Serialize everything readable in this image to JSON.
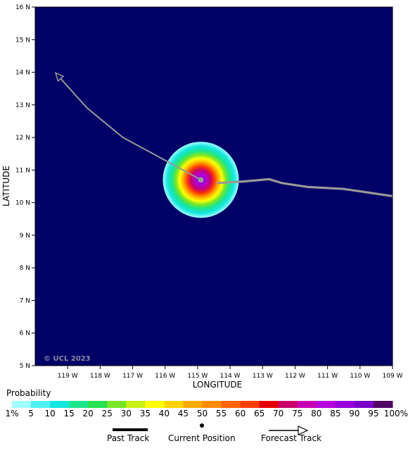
{
  "axes": {
    "xlabel": "LONGITUDE",
    "ylabel": "LATITUDE",
    "x_ticks": [
      "119 W",
      "118 W",
      "117 W",
      "116 W",
      "115 W",
      "114 W",
      "113 W",
      "112 W",
      "111 W",
      "110 W",
      "109 W"
    ],
    "y_ticks": [
      "16 N",
      "15 N",
      "14 N",
      "13 N",
      "12 N",
      "11 N",
      "10 N",
      "9 N",
      "8 N",
      "7 N",
      "6 N",
      "5 N"
    ],
    "x_range_deg_w": [
      120,
      109
    ],
    "y_range_deg_n": [
      5,
      16
    ]
  },
  "copyright": "© UCL 2023",
  "map": {
    "background": "#000066",
    "past_track": [
      [
        -109,
        10.2
      ],
      [
        -110.5,
        10.42
      ],
      [
        -111.6,
        10.48
      ],
      [
        -112.4,
        10.6
      ],
      [
        -112.8,
        10.72
      ],
      [
        -113.6,
        10.65
      ],
      [
        -114.4,
        10.6
      ]
    ],
    "current_position": [
      -114.9,
      10.7
    ],
    "forecast_track": [
      [
        -114.9,
        10.7
      ],
      [
        -116.0,
        11.3
      ],
      [
        -117.3,
        12.0
      ],
      [
        -118.4,
        12.9
      ],
      [
        -119.3,
        13.9
      ]
    ],
    "probability_center": [
      -114.9,
      10.7
    ],
    "colors": {
      "track": "#999999",
      "point": "#999999"
    }
  },
  "legend": {
    "title": "Probability",
    "labels": [
      "1%",
      "5",
      "10",
      "15",
      "20",
      "25",
      "30",
      "35",
      "40",
      "45",
      "50",
      "55",
      "60",
      "65",
      "70",
      "75",
      "80",
      "85",
      "90",
      "95",
      "100%"
    ],
    "colors": [
      "#a0ffff",
      "#50f0f0",
      "#14e6e0",
      "#1ce68c",
      "#28e050",
      "#78e628",
      "#c8f014",
      "#ffff00",
      "#ffd200",
      "#ffaa00",
      "#ff8c00",
      "#ff6400",
      "#ff3c00",
      "#e60000",
      "#c8006e",
      "#c800b4",
      "#b400dc",
      "#9600dc",
      "#7800c8",
      "#500064"
    ]
  },
  "key": {
    "past_track": "Past Track",
    "current_position": "Current Position",
    "forecast_track": "Forecast Track"
  }
}
